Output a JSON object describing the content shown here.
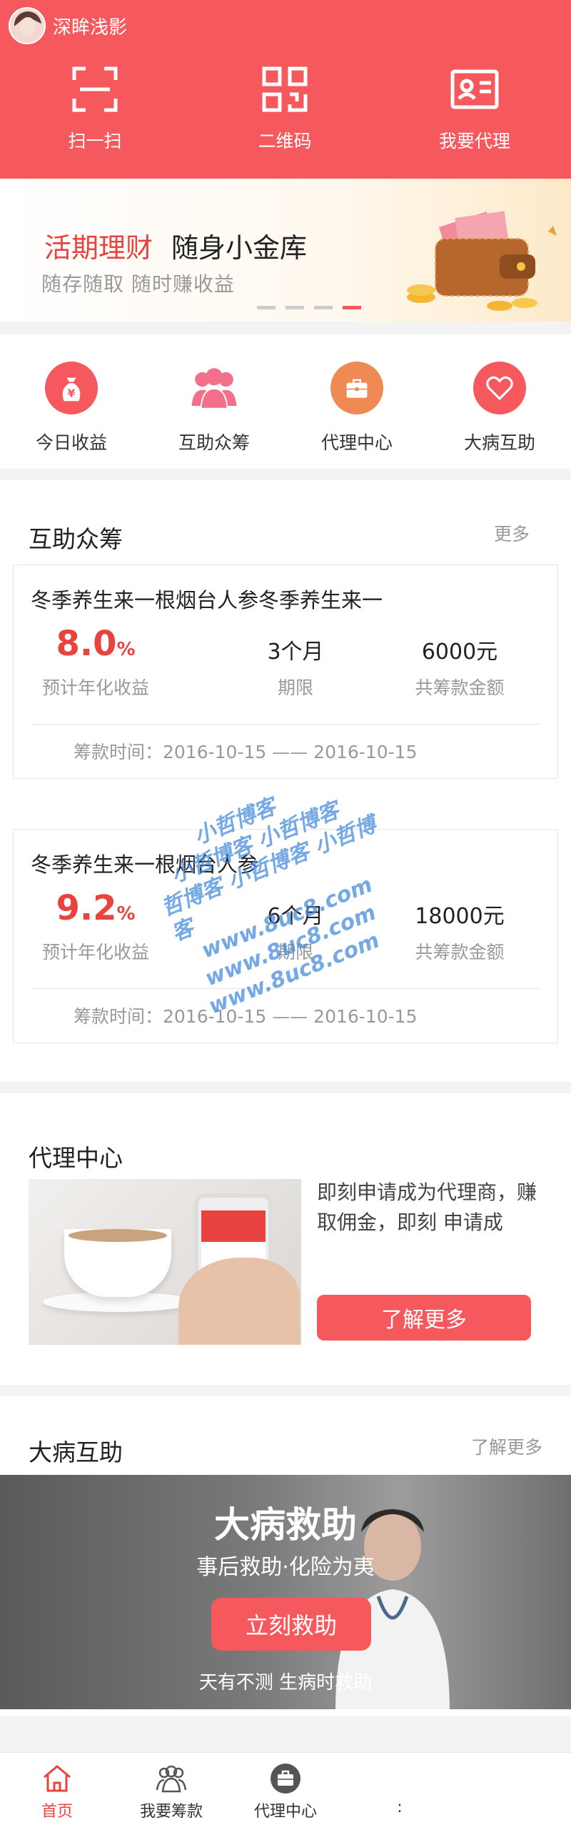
{
  "header": {
    "username": "深眸浅影",
    "actions": [
      {
        "label": "扫一扫",
        "icon": "scan-icon"
      },
      {
        "label": "二维码",
        "icon": "qrcode-icon"
      },
      {
        "label": "我要代理",
        "icon": "id-card-icon"
      }
    ]
  },
  "banner": {
    "title_red": "活期理财",
    "title_black": "随身小金库",
    "subtitle": "随存随取  随时赚收益",
    "dots": 4,
    "active_dot": 3
  },
  "quick_menu": [
    {
      "label": "今日收益",
      "icon": "money-bag-icon",
      "color": "#f5595e"
    },
    {
      "label": "互助众筹",
      "icon": "people-icon",
      "color": "#f2708a"
    },
    {
      "label": "代理中心",
      "icon": "briefcase-icon",
      "color": "#f08a55"
    },
    {
      "label": "大病互助",
      "icon": "heart-icon",
      "color": "#f5595e"
    }
  ],
  "crowdfunding": {
    "title": "互助众筹",
    "more": "更多",
    "cards": [
      {
        "title": "冬季养生来一根烟台人参冬季养生来一",
        "rate": "8.0",
        "rate_unit": "%",
        "rate_caption": "预计年化收益",
        "term": "3个月",
        "term_caption": "期限",
        "amount": "6000元",
        "amount_caption": "共筹款金额",
        "time": "筹款时间：2016-10-15 —— 2016-10-15"
      },
      {
        "title": "冬季养生来一根烟台人参",
        "rate": "9.2",
        "rate_unit": "%",
        "rate_caption": "预计年化收益",
        "term": "6个月",
        "term_caption": "期限",
        "amount": "18000元",
        "amount_caption": "共筹款金额",
        "time": "筹款时间：2016-10-15 —— 2016-10-15"
      }
    ]
  },
  "agency": {
    "title": "代理中心",
    "text": "即刻申请成为代理商，赚取佣金，即刻 申请成",
    "button": "了解更多"
  },
  "illness": {
    "title": "大病互助",
    "more": "了解更多",
    "banner_title": "大病救助",
    "banner_subtitle": "事后救助·化险为夷",
    "banner_button": "立刻救助",
    "banner_footer": "天有不测 生病时救助"
  },
  "tabbar": [
    {
      "label": "首页",
      "icon": "home-icon",
      "active": true
    },
    {
      "label": "我要筹款",
      "icon": "people-icon",
      "active": false
    },
    {
      "label": "代理中心",
      "icon": "briefcase-icon",
      "active": false
    },
    {
      "label": ":",
      "icon": "",
      "active": false
    }
  ],
  "watermark": [
    "小哲博客",
    "小哲博客 小哲博客",
    "哲博客 小哲博客 小哲博客",
    "www.8uc8.com",
    "www.8uc8.com",
    "www.8uc8.com"
  ]
}
